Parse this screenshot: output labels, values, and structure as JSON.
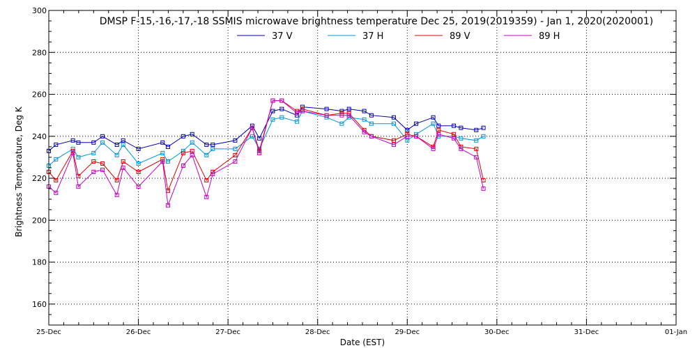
{
  "chart_data": {
    "type": "line",
    "title": "DMSP F-15,-16,-17,-18 SSMIS microwave brightness temperature Dec 25, 2019(2019359) - Jan  1, 2020(2020001)",
    "xlabel": "Date (EST)",
    "ylabel": "Brightness Temperature, Deg K",
    "xlim": [
      0,
      7
    ],
    "ylim": [
      150,
      300
    ],
    "x_ticks": [
      "25-Dec",
      "26-Dec",
      "27-Dec",
      "28-Dec",
      "29-Dec",
      "30-Dec",
      "31-Dec",
      "01-Jan"
    ],
    "y_ticks": [
      160,
      180,
      200,
      220,
      240,
      260,
      280,
      300
    ],
    "grid": true,
    "legend_position": "top-center",
    "series": [
      {
        "name": "37 V",
        "color": "#0000b4",
        "points": [
          [
            0.0,
            233
          ],
          [
            0.08,
            236
          ],
          [
            0.27,
            238
          ],
          [
            0.33,
            237
          ],
          [
            0.5,
            237
          ],
          [
            0.6,
            240
          ],
          [
            0.76,
            236
          ],
          [
            0.83,
            238
          ],
          [
            1.0,
            234
          ],
          [
            1.27,
            237
          ],
          [
            1.33,
            235
          ],
          [
            1.5,
            240
          ],
          [
            1.6,
            241
          ],
          [
            1.76,
            236
          ],
          [
            1.83,
            236
          ],
          [
            2.08,
            238
          ],
          [
            2.27,
            245
          ],
          [
            2.35,
            239
          ],
          [
            2.5,
            252
          ],
          [
            2.6,
            253
          ],
          [
            2.77,
            250
          ],
          [
            2.83,
            254
          ],
          [
            3.1,
            253
          ],
          [
            3.27,
            252
          ],
          [
            3.35,
            253
          ],
          [
            3.52,
            252
          ],
          [
            3.6,
            250
          ],
          [
            3.85,
            249
          ],
          [
            4.0,
            243
          ],
          [
            4.1,
            246
          ],
          [
            4.29,
            249
          ],
          [
            4.35,
            245
          ],
          [
            4.52,
            245
          ],
          [
            4.6,
            244
          ],
          [
            4.77,
            243
          ],
          [
            4.85,
            244
          ]
        ]
      },
      {
        "name": "37 H",
        "color": "#0096dc",
        "points": [
          [
            0.0,
            226
          ],
          [
            0.08,
            229
          ],
          [
            0.27,
            234
          ],
          [
            0.33,
            230
          ],
          [
            0.5,
            232
          ],
          [
            0.6,
            237
          ],
          [
            0.76,
            231
          ],
          [
            0.83,
            236
          ],
          [
            1.0,
            227
          ],
          [
            1.27,
            232
          ],
          [
            1.33,
            228
          ],
          [
            1.5,
            233
          ],
          [
            1.6,
            237
          ],
          [
            1.76,
            231
          ],
          [
            1.83,
            234
          ],
          [
            2.08,
            234
          ],
          [
            2.27,
            240
          ],
          [
            2.35,
            234
          ],
          [
            2.5,
            248
          ],
          [
            2.6,
            249
          ],
          [
            2.77,
            247
          ],
          [
            2.83,
            252
          ],
          [
            3.1,
            249
          ],
          [
            3.27,
            246
          ],
          [
            3.35,
            249
          ],
          [
            3.52,
            248
          ],
          [
            3.6,
            246
          ],
          [
            3.85,
            246
          ],
          [
            4.0,
            238
          ],
          [
            4.1,
            241
          ],
          [
            4.29,
            246
          ],
          [
            4.35,
            240
          ],
          [
            4.52,
            240
          ],
          [
            4.6,
            239
          ],
          [
            4.77,
            238
          ],
          [
            4.85,
            240
          ]
        ]
      },
      {
        "name": "89 V",
        "color": "#dc0000",
        "points": [
          [
            0.0,
            223
          ],
          [
            0.08,
            219
          ],
          [
            0.27,
            233
          ],
          [
            0.33,
            221
          ],
          [
            0.5,
            228
          ],
          [
            0.6,
            227
          ],
          [
            0.76,
            219
          ],
          [
            0.83,
            228
          ],
          [
            1.0,
            223
          ],
          [
            1.27,
            229
          ],
          [
            1.33,
            214
          ],
          [
            1.5,
            232
          ],
          [
            1.6,
            233
          ],
          [
            1.76,
            219
          ],
          [
            1.83,
            223
          ],
          [
            2.08,
            231
          ],
          [
            2.27,
            244
          ],
          [
            2.35,
            233
          ],
          [
            2.5,
            257
          ],
          [
            2.6,
            257
          ],
          [
            2.77,
            252
          ],
          [
            2.83,
            253
          ],
          [
            3.1,
            250
          ],
          [
            3.27,
            251
          ],
          [
            3.35,
            251
          ],
          [
            3.52,
            243
          ],
          [
            3.6,
            240
          ],
          [
            3.85,
            238
          ],
          [
            4.0,
            241
          ],
          [
            4.1,
            240
          ],
          [
            4.29,
            235
          ],
          [
            4.35,
            243
          ],
          [
            4.52,
            241
          ],
          [
            4.6,
            235
          ],
          [
            4.77,
            234
          ],
          [
            4.85,
            219
          ]
        ]
      },
      {
        "name": "89 H",
        "color": "#c800c8",
        "points": [
          [
            0.0,
            216
          ],
          [
            0.08,
            213
          ],
          [
            0.27,
            232
          ],
          [
            0.33,
            216
          ],
          [
            0.5,
            223
          ],
          [
            0.6,
            224
          ],
          [
            0.76,
            212
          ],
          [
            0.83,
            225
          ],
          [
            1.0,
            216
          ],
          [
            1.27,
            228
          ],
          [
            1.33,
            207
          ],
          [
            1.5,
            226
          ],
          [
            1.6,
            231
          ],
          [
            1.76,
            211
          ],
          [
            1.83,
            222
          ],
          [
            2.08,
            228
          ],
          [
            2.27,
            244
          ],
          [
            2.35,
            232
          ],
          [
            2.5,
            257
          ],
          [
            2.6,
            257
          ],
          [
            2.77,
            251
          ],
          [
            2.83,
            252
          ],
          [
            3.1,
            250
          ],
          [
            3.27,
            250
          ],
          [
            3.35,
            250
          ],
          [
            3.52,
            242
          ],
          [
            3.6,
            240
          ],
          [
            3.85,
            236
          ],
          [
            4.0,
            240
          ],
          [
            4.1,
            240
          ],
          [
            4.29,
            234
          ],
          [
            4.35,
            241
          ],
          [
            4.52,
            239
          ],
          [
            4.6,
            234
          ],
          [
            4.77,
            230
          ],
          [
            4.85,
            215
          ]
        ]
      }
    ]
  }
}
